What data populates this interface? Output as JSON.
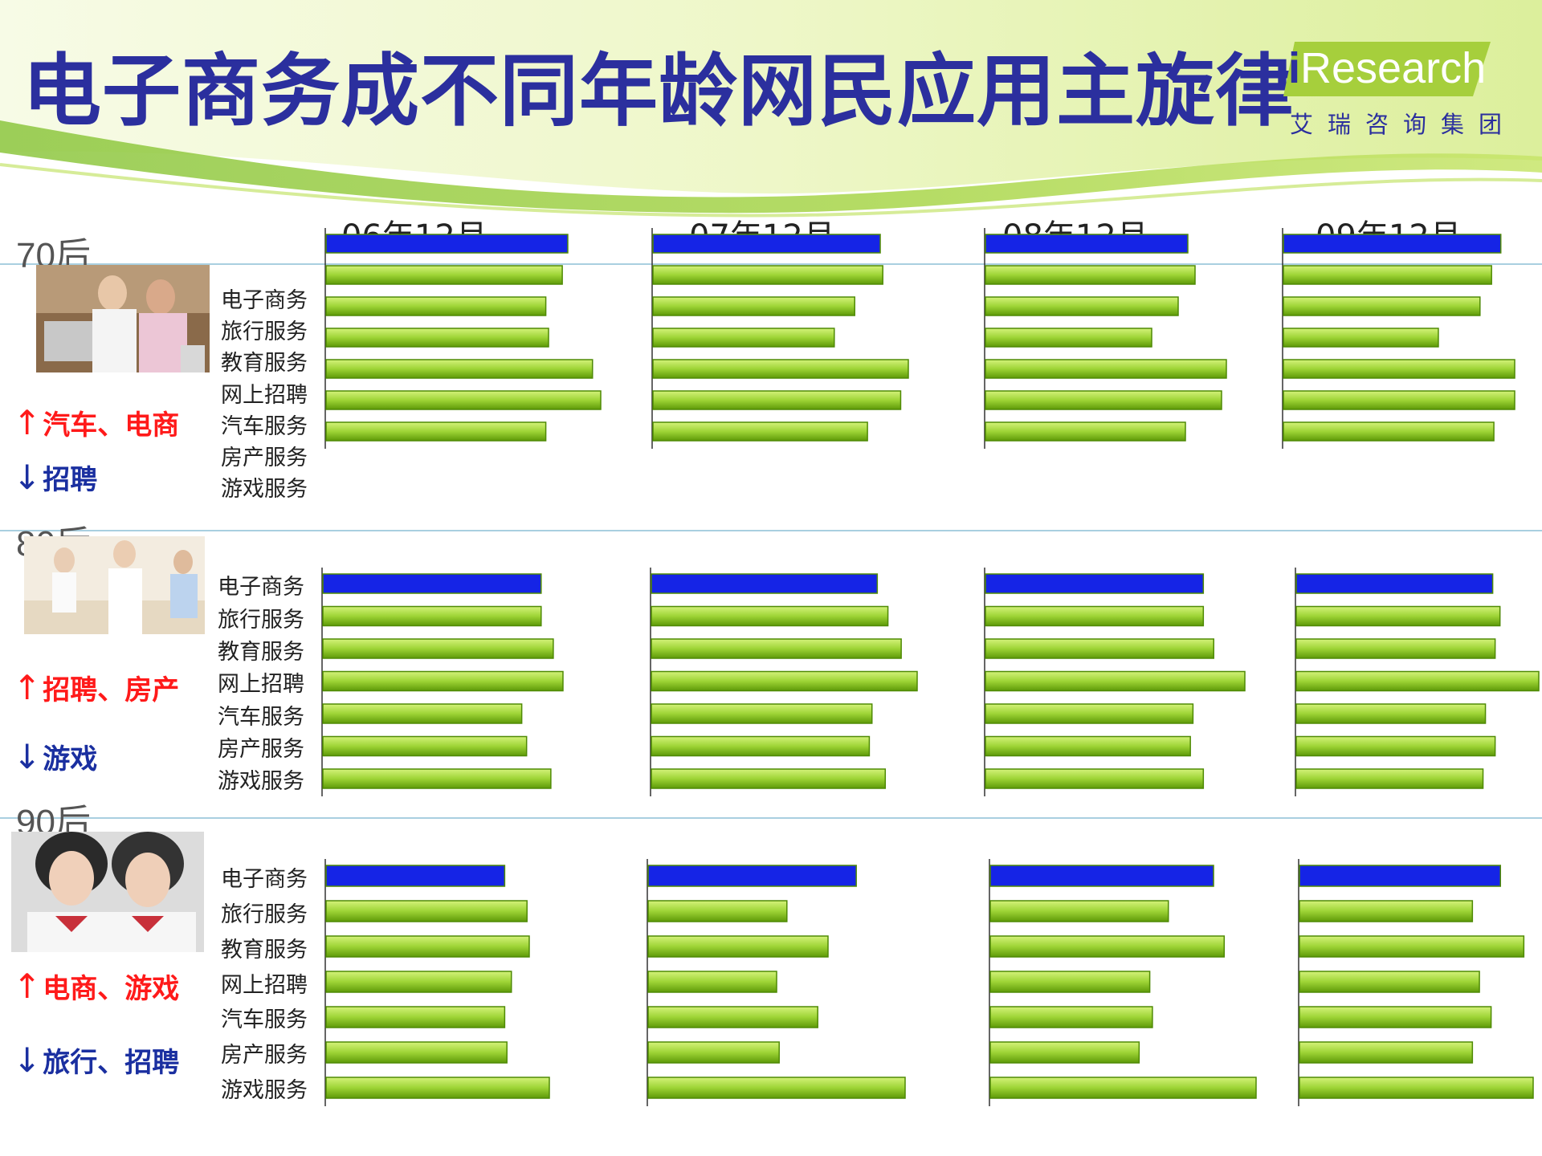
{
  "title": "电子商务成不同年龄网民应用主旋律",
  "logo": {
    "i": "i",
    "brand": "Research",
    "sub": "艾瑞咨询集团"
  },
  "periods": [
    "06年12月",
    "07年12月",
    "08年12月",
    "09年12月"
  ],
  "groups": [
    {
      "label": "70后",
      "up": "汽车、电商",
      "down": "招聘"
    },
    {
      "label": "80后",
      "up": "招聘、房产",
      "down": "游戏"
    },
    {
      "label": "90后",
      "up": "电商、游戏",
      "down": "旅行、招聘"
    }
  ],
  "arrows": {
    "up": "↑",
    "down": "↓"
  },
  "colors": {
    "highlight": "#1524e6",
    "bar_light": "#d4f27a",
    "bar_dark": "#5e9a08",
    "bar_border": "#4f8a05",
    "title": "#2b2f9e"
  },
  "chart_data": {
    "type": "bar",
    "orientation": "horizontal",
    "categories": [
      "电子商务",
      "旅行服务",
      "教育服务",
      "网上招聘",
      "汽车服务",
      "房产服务",
      "游戏服务"
    ],
    "highlight_category": "电子商务",
    "unit": "relative bar length (no axis printed)",
    "panels": [
      {
        "group": "70后",
        "period": "06年12月",
        "values": [
          0.88,
          0.86,
          0.8,
          0.81,
          0.97,
          1.0,
          0.8
        ]
      },
      {
        "group": "70后",
        "period": "07年12月",
        "values": [
          0.89,
          0.9,
          0.79,
          0.71,
          1.0,
          0.97,
          0.84
        ]
      },
      {
        "group": "70后",
        "period": "08年12月",
        "values": [
          0.84,
          0.87,
          0.8,
          0.69,
          1.0,
          0.98,
          0.83
        ]
      },
      {
        "group": "70后",
        "period": "09年12月",
        "values": [
          0.94,
          0.9,
          0.85,
          0.67,
          1.0,
          1.0,
          0.91
        ]
      },
      {
        "group": "80后",
        "period": "06年12月",
        "values": [
          0.9,
          0.9,
          0.95,
          0.99,
          0.82,
          0.84,
          0.94
        ]
      },
      {
        "group": "80后",
        "period": "07年12月",
        "values": [
          0.85,
          0.89,
          0.94,
          1.0,
          0.83,
          0.82,
          0.88
        ]
      },
      {
        "group": "80后",
        "period": "08年12月",
        "values": [
          0.84,
          0.84,
          0.88,
          1.0,
          0.8,
          0.79,
          0.84
        ]
      },
      {
        "group": "80后",
        "period": "09年12月",
        "values": [
          0.81,
          0.84,
          0.82,
          1.0,
          0.78,
          0.82,
          0.77
        ]
      },
      {
        "group": "90后",
        "period": "06年12月",
        "values": [
          0.8,
          0.9,
          0.91,
          0.83,
          0.8,
          0.81,
          1.0
        ]
      },
      {
        "group": "90后",
        "period": "07年12月",
        "values": [
          0.81,
          0.54,
          0.7,
          0.5,
          0.66,
          0.51,
          1.0
        ]
      },
      {
        "group": "90后",
        "period": "08年12月",
        "values": [
          0.84,
          0.67,
          0.88,
          0.6,
          0.61,
          0.56,
          1.0
        ]
      },
      {
        "group": "90后",
        "period": "09年12月",
        "values": [
          0.86,
          0.74,
          0.96,
          0.77,
          0.82,
          0.74,
          1.0
        ]
      }
    ]
  }
}
